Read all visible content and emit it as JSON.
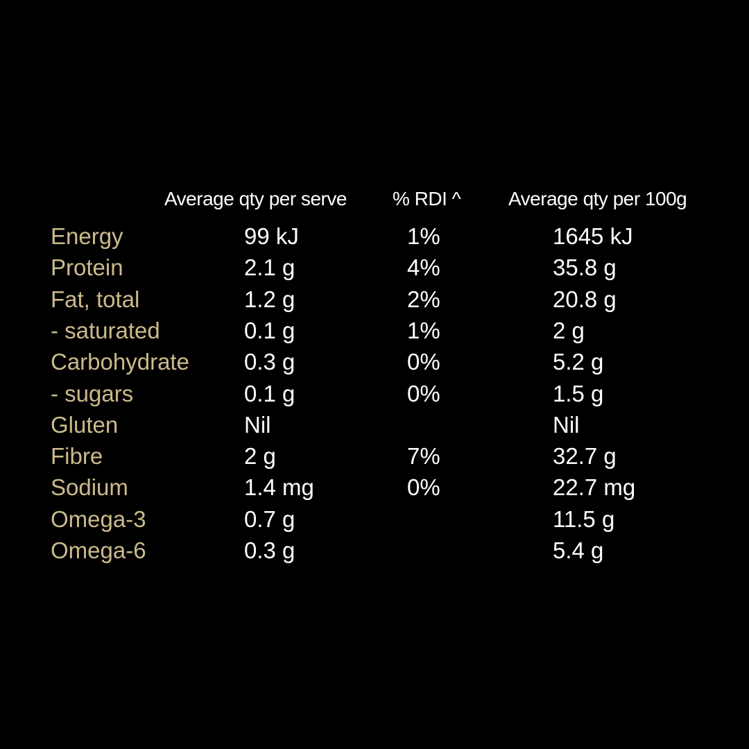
{
  "table": {
    "headers": [
      "Average qty per serve",
      "% RDI ^",
      "Average qty per 100g"
    ],
    "rows": [
      {
        "name": "Energy",
        "per_serve": "99 kJ",
        "rdi": "1%",
        "per_100g": "1645 kJ"
      },
      {
        "name": "Protein",
        "per_serve": "2.1 g",
        "rdi": "4%",
        "per_100g": "35.8 g"
      },
      {
        "name": "Fat, total",
        "per_serve": "1.2 g",
        "rdi": "2%",
        "per_100g": "20.8 g"
      },
      {
        "name": "- saturated",
        "per_serve": "0.1 g",
        "rdi": "1%",
        "per_100g": "2 g"
      },
      {
        "name": "Carbohydrate",
        "per_serve": "0.3 g",
        "rdi": "0%",
        "per_100g": "5.2 g"
      },
      {
        "name": "- sugars",
        "per_serve": "0.1 g",
        "rdi": "0%",
        "per_100g": "1.5 g"
      },
      {
        "name": "Gluten",
        "per_serve": "Nil",
        "per_100g": "Nil"
      },
      {
        "name": "Fibre",
        "per_serve": "2 g",
        "rdi": "7%",
        "per_100g": "32.7 g"
      },
      {
        "name": "Sodium",
        "per_serve": "1.4 mg",
        "rdi": "0%",
        "per_100g": "22.7 mg"
      },
      {
        "name": "Omega-3",
        "per_serve": "0.7 g",
        "per_100g": "11.5 g"
      },
      {
        "name": "Omega-6",
        "per_serve": "0.3 g",
        "per_100g": "5.4 g"
      }
    ]
  }
}
